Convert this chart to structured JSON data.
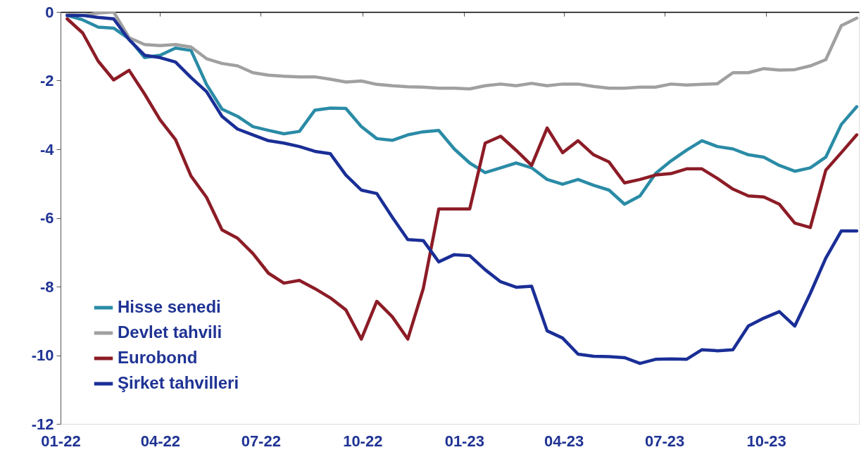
{
  "chart_data": {
    "type": "line",
    "x": [
      "2022-01-07",
      "2022-01-21",
      "2022-02-04",
      "2022-02-18",
      "2022-03-04",
      "2022-03-18",
      "2022-04-01",
      "2022-04-15",
      "2022-04-29",
      "2022-05-13",
      "2022-05-27",
      "2022-06-10",
      "2022-06-24",
      "2022-07-08",
      "2022-07-22",
      "2022-08-05",
      "2022-08-19",
      "2022-09-02",
      "2022-09-16",
      "2022-09-30",
      "2022-10-14",
      "2022-10-28",
      "2022-11-11",
      "2022-11-25",
      "2022-12-09",
      "2022-12-23",
      "2023-01-06",
      "2023-01-20",
      "2023-02-03",
      "2023-02-17",
      "2023-03-03",
      "2023-03-17",
      "2023-03-31",
      "2023-04-14",
      "2023-04-28",
      "2023-05-12",
      "2023-05-26",
      "2023-06-09",
      "2023-06-23",
      "2023-07-07",
      "2023-07-21",
      "2023-08-04",
      "2023-08-18",
      "2023-09-01",
      "2023-09-15",
      "2023-09-29",
      "2023-10-13",
      "2023-10-27",
      "2023-11-10",
      "2023-11-24",
      "2023-12-08",
      "2023-12-22"
    ],
    "series": [
      {
        "name": "Hisse senedi",
        "color": "#2a8ba6",
        "values": [
          -0.1,
          -0.23,
          -0.44,
          -0.47,
          -0.78,
          -1.33,
          -1.26,
          -1.05,
          -1.12,
          -2.11,
          -2.83,
          -3.04,
          -3.34,
          -3.45,
          -3.55,
          -3.48,
          -2.86,
          -2.8,
          -2.81,
          -3.34,
          -3.69,
          -3.74,
          -3.58,
          -3.49,
          -3.45,
          -3.99,
          -4.4,
          -4.68,
          -4.54,
          -4.4,
          -4.54,
          -4.88,
          -5.02,
          -4.88,
          -5.05,
          -5.19,
          -5.6,
          -5.36,
          -4.71,
          -4.34,
          -4.03,
          -3.75,
          -3.92,
          -3.99,
          -4.16,
          -4.23,
          -4.47,
          -4.64,
          -4.54,
          -4.23,
          -3.28,
          -2.76
        ]
      },
      {
        "name": "Devlet tahvili",
        "color": "#a0a0a0",
        "values": [
          -0.06,
          -0.1,
          -0.03,
          0,
          -0.75,
          -0.95,
          -0.98,
          -0.95,
          -1.02,
          -1.36,
          -1.5,
          -1.57,
          -1.77,
          -1.84,
          -1.87,
          -1.89,
          -1.89,
          -1.96,
          -2.04,
          -2.01,
          -2.11,
          -2.15,
          -2.18,
          -2.19,
          -2.22,
          -2.22,
          -2.24,
          -2.15,
          -2.1,
          -2.15,
          -2.08,
          -2.15,
          -2.1,
          -2.1,
          -2.17,
          -2.22,
          -2.22,
          -2.19,
          -2.19,
          -2.1,
          -2.13,
          -2.11,
          -2.09,
          -1.77,
          -1.77,
          -1.65,
          -1.69,
          -1.68,
          -1.57,
          -1.39,
          -0.4,
          -0.18
        ]
      },
      {
        "name": "Eurobond",
        "color": "#8c1c26",
        "values": [
          -0.2,
          -0.61,
          -1.43,
          -1.98,
          -1.7,
          -2.39,
          -3.14,
          -3.72,
          -4.78,
          -5.4,
          -6.35,
          -6.59,
          -7.04,
          -7.61,
          -7.9,
          -7.82,
          -8.06,
          -8.33,
          -8.68,
          -9.53,
          -8.43,
          -8.88,
          -9.53,
          -8.06,
          -5.74,
          -5.74,
          -5.74,
          -3.82,
          -3.62,
          -4.03,
          -4.47,
          -3.38,
          -4.1,
          -3.75,
          -4.16,
          -4.37,
          -4.98,
          -4.88,
          -4.75,
          -4.71,
          -4.57,
          -4.57,
          -4.85,
          -5.16,
          -5.36,
          -5.39,
          -5.6,
          -6.15,
          -6.28,
          -4.61,
          -4.1,
          -3.58
        ]
      },
      {
        "name": "Şirket tahvilleri",
        "color": "#1a2e96",
        "values": [
          -0.1,
          -0.1,
          -0.16,
          -0.2,
          -0.81,
          -1.26,
          -1.33,
          -1.46,
          -1.91,
          -2.32,
          -3.04,
          -3.41,
          -3.58,
          -3.75,
          -3.82,
          -3.92,
          -4.06,
          -4.13,
          -4.75,
          -5.19,
          -5.29,
          -5.98,
          -6.63,
          -6.66,
          -7.28,
          -7.07,
          -7.1,
          -7.51,
          -7.86,
          -8.02,
          -7.99,
          -9.29,
          -9.5,
          -9.97,
          -10.03,
          -10.04,
          -10.07,
          -10.24,
          -10.12,
          -10.11,
          -10.12,
          -9.84,
          -9.87,
          -9.84,
          -9.15,
          -8.92,
          -8.73,
          -9.15,
          -8.2,
          -7.17,
          -6.38,
          -6.38
        ]
      }
    ],
    "xlim": [
      "2022-01-01",
      "2023-12-24"
    ],
    "xticks": [
      {
        "value": "2022-01-01",
        "label": "01-22"
      },
      {
        "value": "2022-04-01",
        "label": "04-22"
      },
      {
        "value": "2022-07-01",
        "label": "07-22"
      },
      {
        "value": "2022-10-01",
        "label": "10-22"
      },
      {
        "value": "2023-01-01",
        "label": "01-23"
      },
      {
        "value": "2023-04-01",
        "label": "04-23"
      },
      {
        "value": "2023-07-01",
        "label": "07-23"
      },
      {
        "value": "2023-10-01",
        "label": "10-23"
      }
    ],
    "ylim": [
      -12,
      0
    ],
    "yticks": [
      -12,
      -10,
      -8,
      -6,
      -4,
      -2,
      0
    ],
    "grid": false,
    "legend": "bottom left",
    "marker": "none",
    "line_style": "solid"
  }
}
